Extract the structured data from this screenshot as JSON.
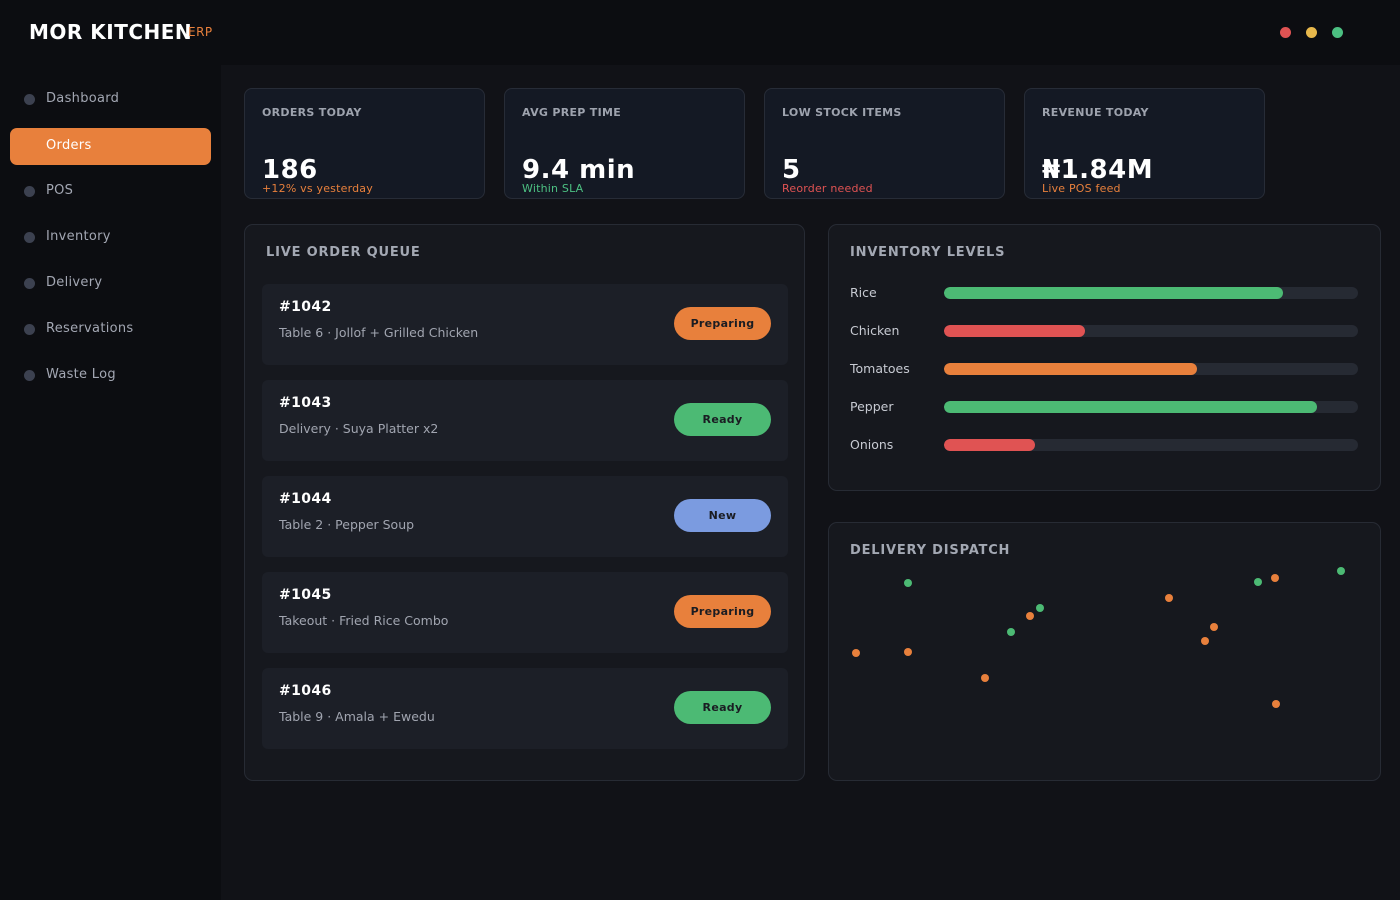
{
  "app": {
    "brand": "MOR KITCHEN",
    "brand_suffix": "ERP",
    "window_dots": [
      "#e05353",
      "#e8b84c",
      "#4cc082"
    ]
  },
  "sidebar": {
    "items": [
      {
        "label": "Dashboard",
        "active": false
      },
      {
        "label": "Orders",
        "active": true
      },
      {
        "label": "POS",
        "active": false
      },
      {
        "label": "Inventory",
        "active": false
      },
      {
        "label": "Delivery",
        "active": false
      },
      {
        "label": "Reservations",
        "active": false
      },
      {
        "label": "Waste Log",
        "active": false
      }
    ]
  },
  "kpis": [
    {
      "title": "ORDERS TODAY",
      "value": "186",
      "sub": "+12% vs yesterday",
      "sub_color": "#e8803c"
    },
    {
      "title": "AVG PREP TIME",
      "value": "9.4 min",
      "sub": "Within SLA",
      "sub_color": "#4cc082"
    },
    {
      "title": "LOW STOCK ITEMS",
      "value": "5",
      "sub": "Reorder needed",
      "sub_color": "#e05353"
    },
    {
      "title": "REVENUE TODAY",
      "value": "₦1.84M",
      "sub": "Live POS feed",
      "sub_color": "#e8803c"
    }
  ],
  "order_queue": {
    "title": "LIVE ORDER QUEUE",
    "orders": [
      {
        "id": "#1042",
        "desc": "Table 6 · Jollof + Grilled Chicken",
        "status": "Preparing",
        "status_color": "#e8803c"
      },
      {
        "id": "#1043",
        "desc": "Delivery · Suya Platter x2",
        "status": "Ready",
        "status_color": "#4cba74"
      },
      {
        "id": "#1044",
        "desc": "Table 2 · Pepper Soup",
        "status": "New",
        "status_color": "#7b9be0"
      },
      {
        "id": "#1045",
        "desc": "Takeout · Fried Rice Combo",
        "status": "Preparing",
        "status_color": "#e8803c"
      },
      {
        "id": "#1046",
        "desc": "Table 9 · Amala + Ewedu",
        "status": "Ready",
        "status_color": "#4cba74"
      }
    ]
  },
  "inventory": {
    "title": "INVENTORY LEVELS",
    "items": [
      {
        "label": "Rice",
        "level": 0.82,
        "color": "#4cba74"
      },
      {
        "label": "Chicken",
        "level": 0.34,
        "color": "#e05353"
      },
      {
        "label": "Tomatoes",
        "level": 0.61,
        "color": "#e8803c"
      },
      {
        "label": "Pepper",
        "level": 0.9,
        "color": "#4cba74"
      },
      {
        "label": "Onions",
        "level": 0.22,
        "color": "#e05353"
      }
    ]
  },
  "dispatch": {
    "title": "DELIVERY DISPATCH",
    "colors": {
      "green": "#4cba74",
      "orange": "#e8803c"
    },
    "points": [
      {
        "x": 0.143,
        "y": 0.233,
        "c": "green"
      },
      {
        "x": 0.33,
        "y": 0.42,
        "c": "green"
      },
      {
        "x": 0.382,
        "y": 0.327,
        "c": "green"
      },
      {
        "x": 0.364,
        "y": 0.36,
        "c": "orange"
      },
      {
        "x": 0.048,
        "y": 0.5,
        "c": "orange"
      },
      {
        "x": 0.143,
        "y": 0.497,
        "c": "orange"
      },
      {
        "x": 0.282,
        "y": 0.597,
        "c": "orange"
      },
      {
        "x": 0.614,
        "y": 0.29,
        "c": "orange"
      },
      {
        "x": 0.697,
        "y": 0.4,
        "c": "orange"
      },
      {
        "x": 0.68,
        "y": 0.457,
        "c": "orange"
      },
      {
        "x": 0.807,
        "y": 0.213,
        "c": "orange"
      },
      {
        "x": 0.809,
        "y": 0.697,
        "c": "orange"
      },
      {
        "x": 0.775,
        "y": 0.227,
        "c": "green"
      },
      {
        "x": 0.925,
        "y": 0.187,
        "c": "green"
      }
    ]
  }
}
